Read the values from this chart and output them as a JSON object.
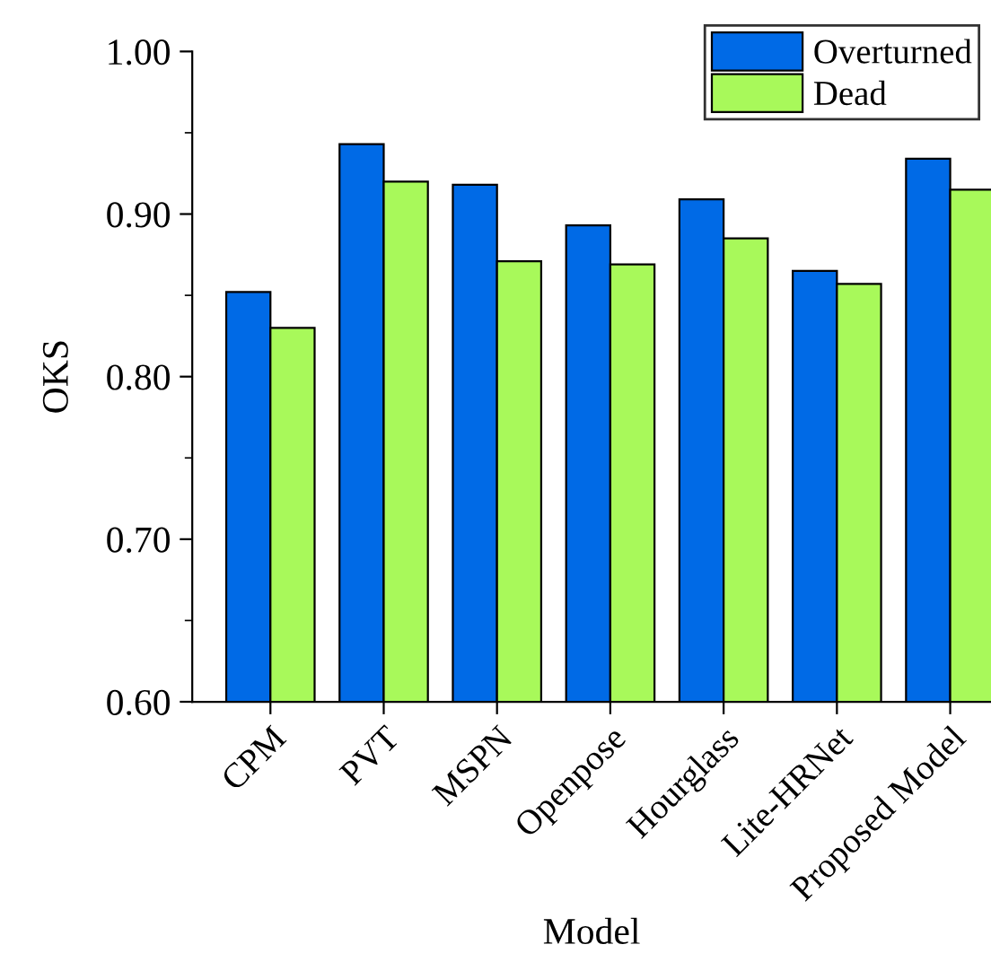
{
  "chart_data": {
    "type": "bar",
    "xlabel": "Model",
    "ylabel": "OKS",
    "categories": [
      "CPM",
      "PVT",
      "MSPN",
      "Openpose",
      "Hourglass",
      "Lite-HRNet",
      "Proposed Model"
    ],
    "series": [
      {
        "name": "Overturned",
        "color": "#006ae6",
        "values": [
          0.852,
          0.943,
          0.918,
          0.893,
          0.909,
          0.865,
          0.934
        ]
      },
      {
        "name": "Dead",
        "color": "#a8f95a",
        "values": [
          0.83,
          0.92,
          0.871,
          0.869,
          0.885,
          0.857,
          0.915
        ]
      }
    ],
    "ylim": [
      0.6,
      1.0
    ],
    "yticks": [
      {
        "value": 0.6,
        "label": "0.60"
      },
      {
        "value": 0.7,
        "label": "0.70"
      },
      {
        "value": 0.8,
        "label": "0.80"
      },
      {
        "value": 0.9,
        "label": "0.90"
      },
      {
        "value": 1.0,
        "label": "1.00"
      }
    ],
    "grid": false,
    "legend": "top right"
  }
}
